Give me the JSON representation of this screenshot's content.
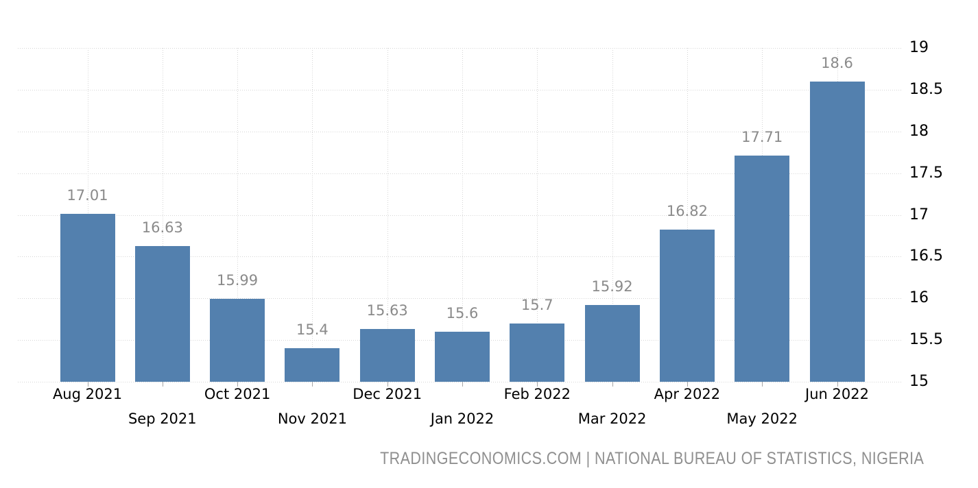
{
  "chart_data": {
    "type": "bar",
    "title": "",
    "xlabel": "",
    "ylabel": "",
    "categories": [
      "Aug 2021",
      "Sep 2021",
      "Oct 2021",
      "Nov 2021",
      "Dec 2021",
      "Jan 2022",
      "Feb 2022",
      "Mar 2022",
      "Apr 2022",
      "May 2022",
      "Jun 2022"
    ],
    "values": [
      17.01,
      16.63,
      15.99,
      15.4,
      15.63,
      15.6,
      15.7,
      15.92,
      16.82,
      17.71,
      18.6
    ],
    "value_labels": [
      "17.01",
      "16.63",
      "15.99",
      "15.4",
      "15.63",
      "15.6",
      "15.7",
      "15.92",
      "16.82",
      "17.71",
      "18.6"
    ],
    "ylim": [
      15,
      19
    ],
    "y_ticks": [
      "19",
      "18.5",
      "18",
      "17.5",
      "17",
      "16.5",
      "16",
      "15.5",
      "15"
    ],
    "y_axis_position": "right",
    "grid": "dotted",
    "legend": "none",
    "colors": {
      "bar": "#5380AE",
      "value_label": "#8A8A8A",
      "axis_label": "#000000",
      "gridline": "#D5D5D5",
      "tick": "#A6A6A6",
      "background": "#FFFFFF"
    }
  },
  "footer": {
    "attribution": "TRADINGECONOMICS.COM | NATIONAL BUREAU OF STATISTICS, NIGERIA",
    "color": "#8F8F8F"
  }
}
